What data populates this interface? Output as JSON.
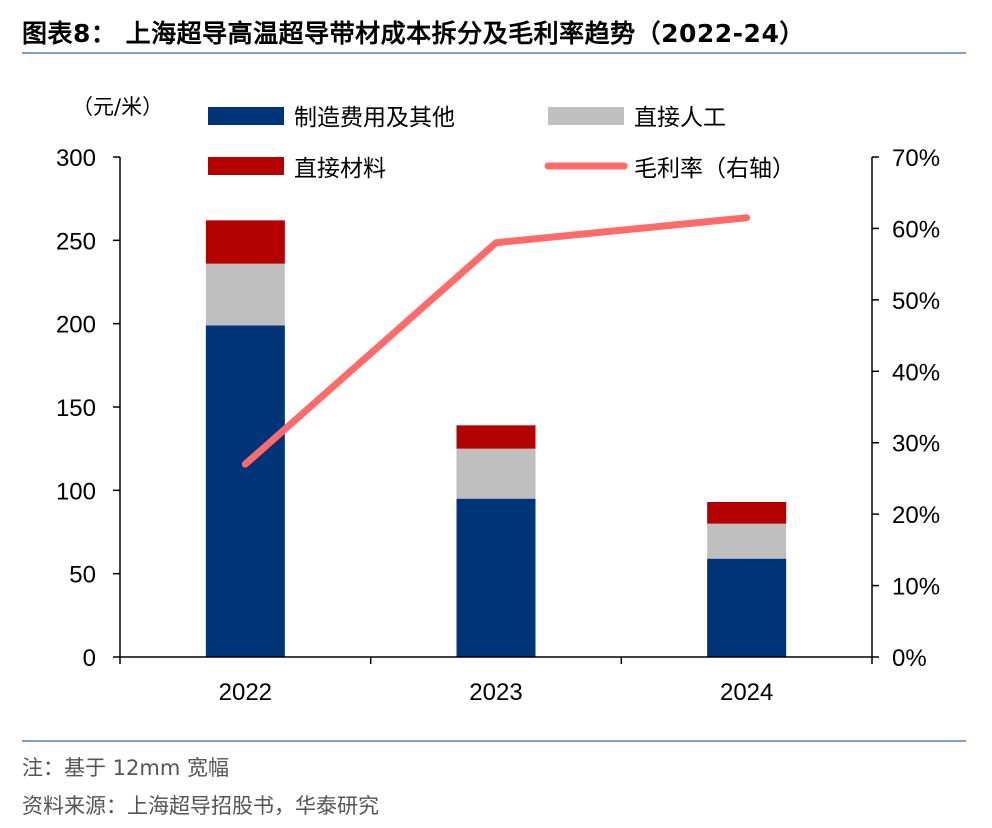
{
  "header": {
    "title": "图表8： 上海超导高温超导带材成本拆分及毛利率趋势（2022-24）"
  },
  "chart_data": {
    "type": "bar",
    "stacked": true,
    "categories": [
      "2022",
      "2023",
      "2024"
    ],
    "series": [
      {
        "name": "制造费用及其他",
        "color": "#003478",
        "values": [
          199,
          95,
          59
        ]
      },
      {
        "name": "直接人工",
        "color": "#bfbfbf",
        "values": [
          37,
          30,
          21
        ]
      },
      {
        "name": "直接材料",
        "color": "#b30000",
        "values": [
          26,
          14,
          13
        ]
      }
    ],
    "line_series": {
      "name": "毛利率（右轴）",
      "color": "#ff6b6b",
      "values": [
        0.27,
        0.58,
        0.615
      ]
    },
    "ylabel": "（元/米）",
    "ylim": [
      0,
      300
    ],
    "y_ticks": [
      "0",
      "50",
      "100",
      "150",
      "200",
      "250",
      "300"
    ],
    "y2lim": [
      0,
      0.7
    ],
    "y2_ticks": [
      "0%",
      "10%",
      "20%",
      "30%",
      "40%",
      "50%",
      "60%",
      "70%"
    ],
    "grid": false,
    "legend_position": "top"
  },
  "footer": {
    "note": "注：基于 12mm 宽幅",
    "source": "资料来源：上海超导招股书，华泰研究"
  }
}
